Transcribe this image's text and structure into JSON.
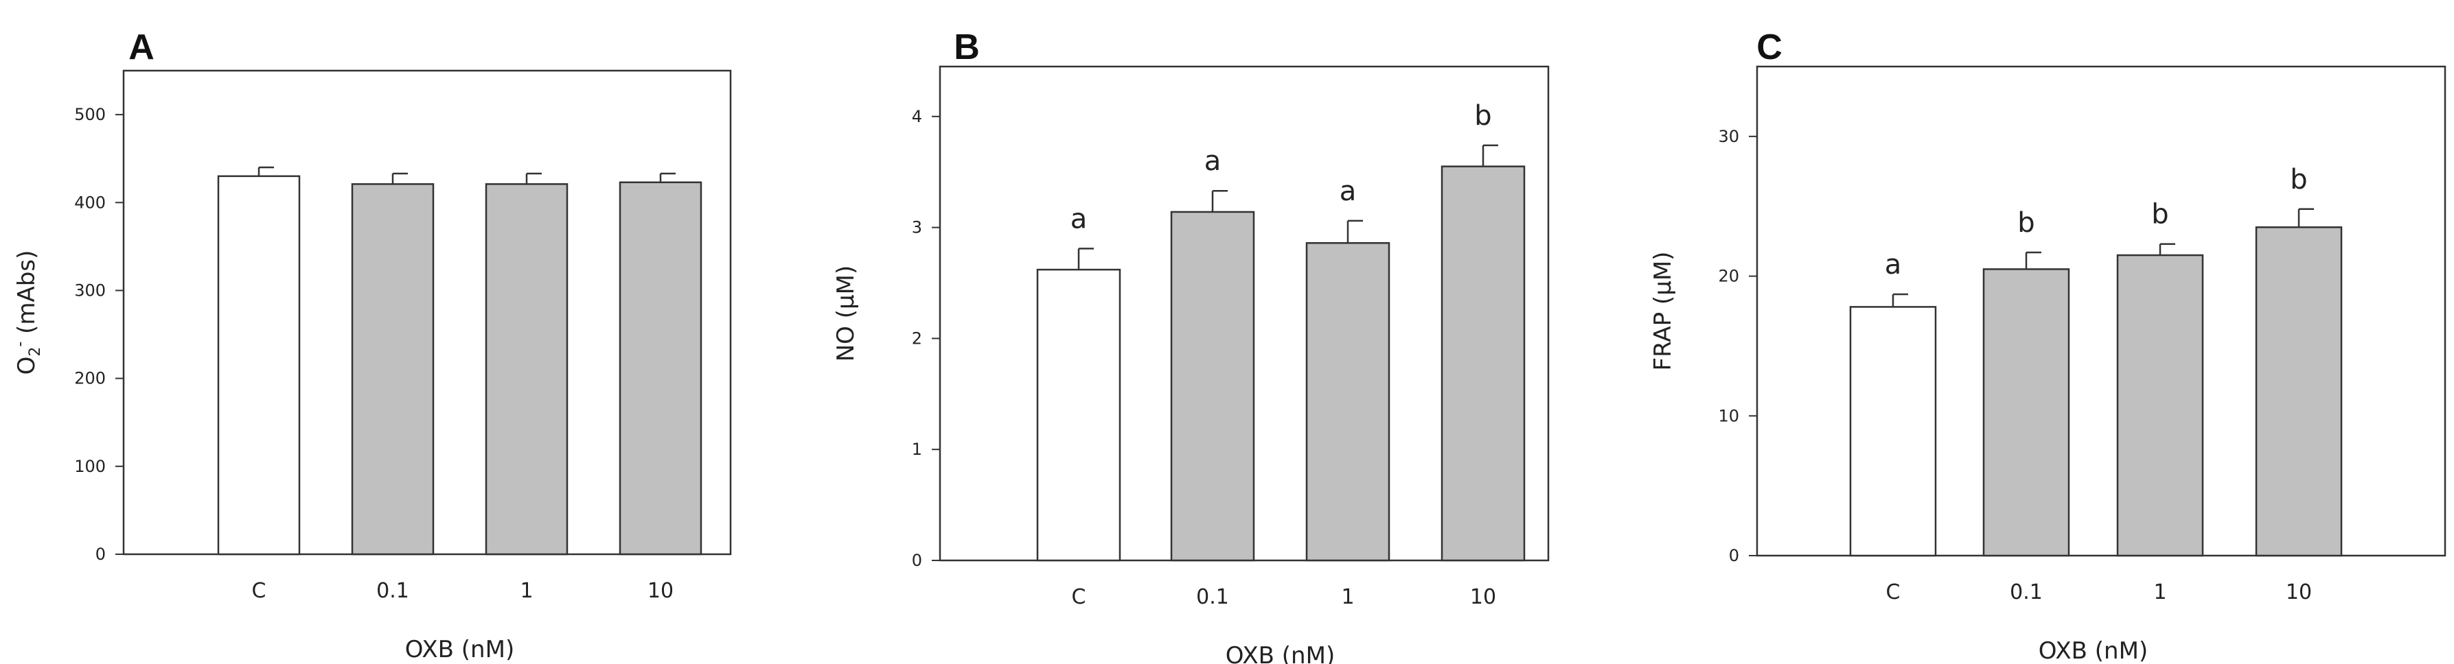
{
  "colors": {
    "control_fill": "#ffffff",
    "treated_fill": "#c0c0c0",
    "bar_stroke": "#333333",
    "axis_stroke": "#333333"
  },
  "chart_data": [
    {
      "type": "bar",
      "panel": "A",
      "categories": [
        "C",
        "0.1",
        "1",
        "10"
      ],
      "values": [
        430,
        421,
        421,
        423
      ],
      "errors": [
        10,
        12,
        12,
        10
      ],
      "annotations": [
        "",
        "",
        "",
        ""
      ],
      "xlabel": "OXB (nM)",
      "ylabel": "O2- (mAbs)",
      "ylabel_parts": {
        "base": "O",
        "sub": "2",
        "sup": "-",
        "rest": " (mAbs)"
      },
      "ylim": [
        0,
        550
      ],
      "yticks": [
        0,
        100,
        200,
        300,
        400,
        500
      ],
      "grid": false
    },
    {
      "type": "bar",
      "panel": "B",
      "categories": [
        "C",
        "0.1",
        "1",
        "10"
      ],
      "values": [
        2.62,
        3.14,
        2.86,
        3.55
      ],
      "errors": [
        0.19,
        0.19,
        0.2,
        0.19
      ],
      "annotations": [
        "a",
        "a",
        "a",
        "b"
      ],
      "xlabel": "OXB (nM)",
      "ylabel": "NO (µM)",
      "ylim": [
        0,
        4.45
      ],
      "yticks": [
        0,
        1,
        2,
        3,
        4
      ],
      "grid": false
    },
    {
      "type": "bar",
      "panel": "C",
      "categories": [
        "C",
        "0.1",
        "1",
        "10"
      ],
      "values": [
        17.8,
        20.5,
        21.5,
        23.5
      ],
      "errors": [
        0.9,
        1.2,
        0.8,
        1.3
      ],
      "annotations": [
        "a",
        "b",
        "b",
        "b"
      ],
      "xlabel": "OXB (nM)",
      "ylabel": "FRAP (µM)",
      "ylim": [
        0,
        35
      ],
      "yticks": [
        0,
        10,
        20,
        30
      ],
      "grid": false
    }
  ]
}
